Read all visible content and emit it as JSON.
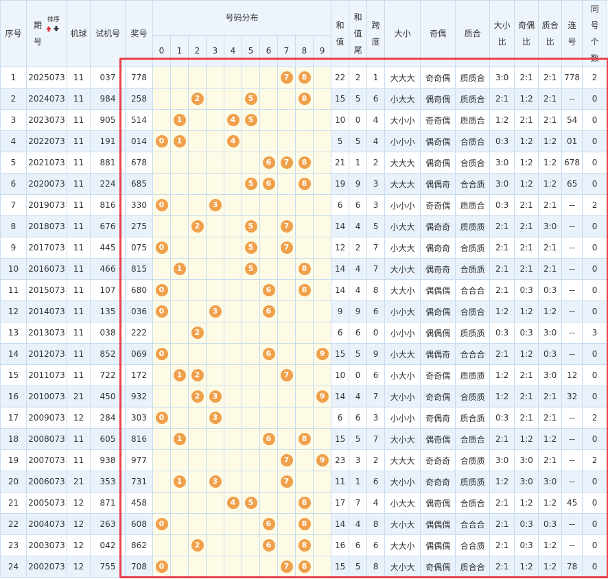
{
  "header": {
    "index": "序号",
    "period": {
      "top": "期",
      "bottom": "号",
      "sort": "排序"
    },
    "machine": "机球",
    "trial": "试机号",
    "prize": "奖号",
    "distribution": "号码分布",
    "digits": [
      0,
      1,
      2,
      3,
      4,
      5,
      6,
      7,
      8,
      9
    ],
    "sum": "和值",
    "sum_tail": "和值尾",
    "span": "跨度",
    "size": "大小",
    "parity": "奇偶",
    "prime": "质合",
    "size_ratio": "大小比",
    "parity_ratio": "奇偶比",
    "prime_ratio": "质合比",
    "consecutive": "连号",
    "same_count": "同号个数"
  },
  "rows": [
    [
      1,
      "2025073",
      11,
      "037",
      "778",
      [
        7,
        8
      ],
      22,
      2,
      1,
      "大大大",
      "奇奇偶",
      "质质合",
      "3:0",
      "2:1",
      "2:1",
      "778",
      2
    ],
    [
      2,
      "2024073",
      11,
      "984",
      "258",
      [
        2,
        5,
        8
      ],
      15,
      5,
      6,
      "小大大",
      "偶奇偶",
      "质质合",
      "2:1",
      "1:2",
      "2:1",
      "--",
      0
    ],
    [
      3,
      "2023073",
      11,
      "905",
      "514",
      [
        1,
        4,
        5
      ],
      10,
      0,
      4,
      "大小小",
      "奇奇偶",
      "质质合",
      "1:2",
      "2:1",
      "2:1",
      "54",
      0
    ],
    [
      4,
      "2022073",
      11,
      "191",
      "014",
      [
        0,
        1,
        4
      ],
      5,
      5,
      4,
      "小小小",
      "偶奇偶",
      "合质合",
      "0:3",
      "1:2",
      "1:2",
      "01",
      0
    ],
    [
      5,
      "2021073",
      11,
      "881",
      "678",
      [
        6,
        7,
        8
      ],
      21,
      1,
      2,
      "大大大",
      "偶奇偶",
      "合质合",
      "3:0",
      "1:2",
      "1:2",
      "678",
      0
    ],
    [
      6,
      "2020073",
      11,
      "224",
      "685",
      [
        5,
        6,
        8
      ],
      19,
      9,
      3,
      "大大大",
      "偶偶奇",
      "合合质",
      "3:0",
      "1:2",
      "1:2",
      "65",
      0
    ],
    [
      7,
      "2019073",
      11,
      "816",
      "330",
      [
        0,
        3
      ],
      6,
      6,
      3,
      "小小小",
      "奇奇偶",
      "质质合",
      "0:3",
      "2:1",
      "2:1",
      "--",
      2
    ],
    [
      8,
      "2018073",
      11,
      "676",
      "275",
      [
        2,
        5,
        7
      ],
      14,
      4,
      5,
      "小大大",
      "偶奇奇",
      "质质质",
      "2:1",
      "2:1",
      "3:0",
      "--",
      0
    ],
    [
      9,
      "2017073",
      11,
      "445",
      "075",
      [
        0,
        5,
        7
      ],
      12,
      2,
      7,
      "小大大",
      "偶奇奇",
      "合质质",
      "2:1",
      "2:1",
      "2:1",
      "--",
      0
    ],
    [
      10,
      "2016073",
      11,
      "466",
      "815",
      [
        1,
        5,
        8
      ],
      14,
      4,
      7,
      "大小大",
      "偶奇奇",
      "合质质",
      "2:1",
      "2:1",
      "2:1",
      "--",
      0
    ],
    [
      11,
      "2015073",
      11,
      "107",
      "680",
      [
        0,
        6,
        8
      ],
      14,
      4,
      8,
      "大大小",
      "偶偶偶",
      "合合合",
      "2:1",
      "0:3",
      "0:3",
      "--",
      0
    ],
    [
      12,
      "2014073",
      11,
      "135",
      "036",
      [
        0,
        3,
        6
      ],
      9,
      9,
      6,
      "小小大",
      "偶奇偶",
      "合质合",
      "1:2",
      "1:2",
      "1:2",
      "--",
      0
    ],
    [
      13,
      "2013073",
      11,
      "038",
      "222",
      [
        2
      ],
      6,
      6,
      0,
      "小小小",
      "偶偶偶",
      "质质质",
      "0:3",
      "0:3",
      "3:0",
      "--",
      3
    ],
    [
      14,
      "2012073",
      11,
      "852",
      "069",
      [
        0,
        6,
        9
      ],
      15,
      5,
      9,
      "小大大",
      "偶偶奇",
      "合合合",
      "2:1",
      "1:2",
      "0:3",
      "--",
      0
    ],
    [
      15,
      "2011073",
      11,
      "722",
      "172",
      [
        1,
        2,
        7
      ],
      10,
      0,
      6,
      "小大小",
      "奇奇偶",
      "质质质",
      "1:2",
      "2:1",
      "3:0",
      "12",
      0
    ],
    [
      16,
      "2010073",
      21,
      "450",
      "932",
      [
        2,
        3,
        9
      ],
      14,
      4,
      7,
      "大小小",
      "奇奇偶",
      "合质质",
      "1:2",
      "2:1",
      "2:1",
      "32",
      0
    ],
    [
      17,
      "2009073",
      12,
      "284",
      "303",
      [
        0,
        3
      ],
      6,
      6,
      3,
      "小小小",
      "奇偶奇",
      "质合质",
      "0:3",
      "2:1",
      "2:1",
      "--",
      2
    ],
    [
      18,
      "2008073",
      11,
      "605",
      "816",
      [
        1,
        6,
        8
      ],
      15,
      5,
      7,
      "大小大",
      "偶奇偶",
      "合质合",
      "2:1",
      "1:2",
      "1:2",
      "--",
      0
    ],
    [
      19,
      "2007073",
      11,
      "938",
      "977",
      [
        7,
        9
      ],
      23,
      3,
      2,
      "大大大",
      "奇奇奇",
      "合质质",
      "3:0",
      "3:0",
      "2:1",
      "--",
      2
    ],
    [
      20,
      "2006073",
      21,
      "353",
      "731",
      [
        1,
        3,
        7
      ],
      11,
      1,
      6,
      "大小小",
      "奇奇奇",
      "质质质",
      "1:2",
      "3:0",
      "3:0",
      "--",
      0
    ],
    [
      21,
      "2005073",
      12,
      "871",
      "458",
      [
        4,
        5,
        8
      ],
      17,
      7,
      4,
      "小大大",
      "偶奇偶",
      "合质合",
      "2:1",
      "1:2",
      "1:2",
      "45",
      0
    ],
    [
      22,
      "2004073",
      12,
      "263",
      "608",
      [
        0,
        6,
        8
      ],
      14,
      4,
      8,
      "大小大",
      "偶偶偶",
      "合合合",
      "2:1",
      "0:3",
      "0:3",
      "--",
      0
    ],
    [
      23,
      "2003073",
      12,
      "042",
      "862",
      [
        2,
        6,
        8
      ],
      16,
      6,
      6,
      "大大小",
      "偶偶偶",
      "合合质",
      "2:1",
      "0:3",
      "1:2",
      "--",
      0
    ],
    [
      24,
      "2002073",
      12,
      "755",
      "708",
      [
        0,
        7,
        8
      ],
      15,
      5,
      8,
      "大小大",
      "奇偶偶",
      "质合合",
      "2:1",
      "1:2",
      "1:2",
      "78",
      0
    ]
  ]
}
